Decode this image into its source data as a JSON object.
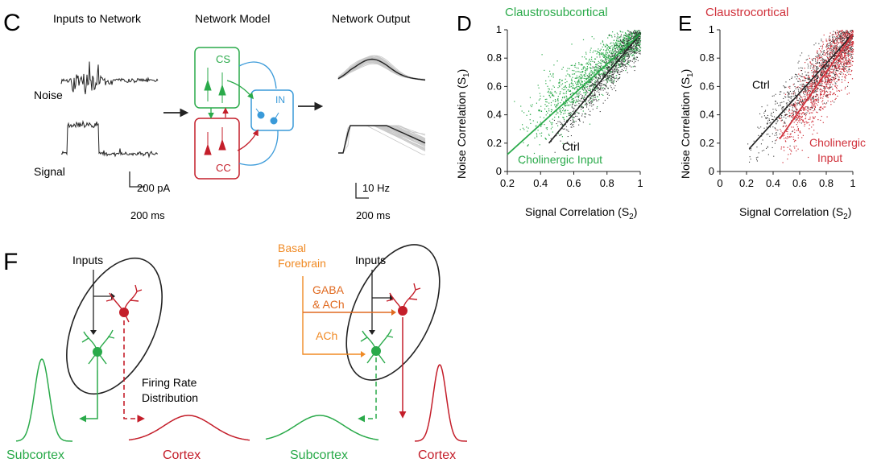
{
  "panel_c": {
    "letter": "C",
    "inputs_title": "Inputs to Network",
    "model_title": "Network Model",
    "output_title": "Network Output",
    "noise_label": "Noise",
    "signal_label": "Signal",
    "cs_label": "CS",
    "cc_label": "CC",
    "in_label": "IN",
    "pa_scale": "200 pA",
    "ms_scale_left": "200 ms",
    "hz_scale": "10 Hz",
    "ms_scale_right": "200 ms",
    "colors": {
      "cs": "#2aaa4a",
      "cc": "#c41e2a",
      "in": "#3a9ad9"
    }
  },
  "panel_d": {
    "letter": "D",
    "title": "Claustrosubcortical",
    "xlabel": "Signal Correlation (S",
    "xlabel_sub": "2",
    "xlabel_end": ")",
    "ylabel": "Noise Correlation (S",
    "ylabel_sub": "1",
    "ylabel_end": ")",
    "ctrl_label": "Ctrl",
    "treat_label": "Cholinergic Input",
    "color": "#2aaa4a"
  },
  "panel_e": {
    "letter": "E",
    "title": "Claustrocortical",
    "xlabel": "Signal Correlation (S",
    "xlabel_sub": "2",
    "xlabel_end": ")",
    "ylabel": "Noise Correlation (S",
    "ylabel_sub": "1",
    "ylabel_end": ")",
    "ctrl_label": "Ctrl",
    "treat_label_1": "Cholinergic",
    "treat_label_2": "Input",
    "color": "#d0303a"
  },
  "chart_data": [
    {
      "type": "scatter",
      "title": "Claustrosubcortical",
      "xlabel": "Signal Correlation (S2)",
      "ylabel": "Noise Correlation (S1)",
      "xlim": [
        0.2,
        1.0
      ],
      "ylim": [
        0,
        1.0
      ],
      "xticks": [
        0.2,
        0.4,
        0.6,
        0.8,
        1
      ],
      "yticks": [
        0,
        0.2,
        0.4,
        0.6,
        0.8,
        1
      ],
      "series": [
        {
          "name": "Ctrl",
          "fit_line": [
            [
              0.45,
              0.2
            ],
            [
              1.0,
              0.97
            ]
          ]
        },
        {
          "name": "Cholinergic Input",
          "fit_line": [
            [
              0.2,
              0.12
            ],
            [
              1.0,
              0.97
            ]
          ]
        }
      ]
    },
    {
      "type": "scatter",
      "title": "Claustrocortical",
      "xlabel": "Signal Correlation (S2)",
      "ylabel": "Noise Correlation (S1)",
      "xlim": [
        0,
        1.0
      ],
      "ylim": [
        0,
        1.0
      ],
      "xticks": [
        0,
        0.2,
        0.4,
        0.6,
        0.8,
        1
      ],
      "yticks": [
        0,
        0.2,
        0.4,
        0.6,
        0.8,
        1
      ],
      "series": [
        {
          "name": "Ctrl",
          "fit_line": [
            [
              0.22,
              0.16
            ],
            [
              1.0,
              0.97
            ]
          ]
        },
        {
          "name": "Cholinergic Input",
          "fit_line": [
            [
              0.45,
              0.23
            ],
            [
              1.0,
              0.97
            ]
          ]
        }
      ]
    }
  ],
  "panel_f": {
    "letter": "F",
    "inputs_left": "Inputs",
    "inputs_right": "Inputs",
    "firing_1": "Firing Rate",
    "firing_2": "Distribution",
    "subcortex_left": "Subcortex",
    "cortex_left": "Cortex",
    "subcortex_right": "Subcortex",
    "cortex_right": "Cortex",
    "basal_1": "Basal",
    "basal_2": "Forebrain",
    "gaba_1": "GABA",
    "gaba_2": "& ACh",
    "ach": "ACh",
    "colors": {
      "green": "#2aaa4a",
      "red": "#c41e2a",
      "orange": "#f08a24"
    }
  }
}
